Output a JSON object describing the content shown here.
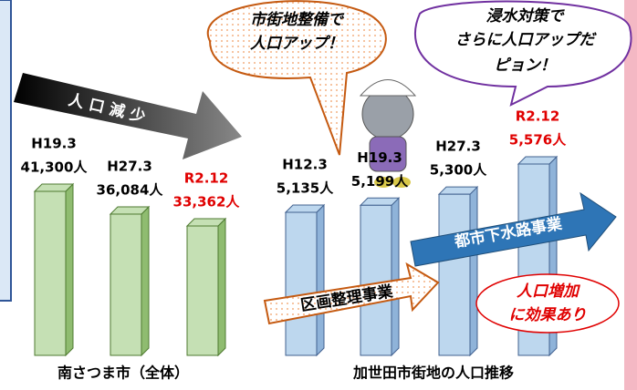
{
  "chart_data": [
    {
      "type": "bar",
      "title": "南さつま市（全体）",
      "categories": [
        "H19.3",
        "H27.3",
        "R2.12"
      ],
      "values": [
        41300,
        36084,
        33362
      ],
      "value_labels": [
        "41,300人",
        "36,084人",
        "33,362人"
      ],
      "color": "#c5e0b4",
      "label_colors": [
        "#000000",
        "#000000",
        "#e00000"
      ]
    },
    {
      "type": "bar",
      "title": "加世田市街地の人口推移",
      "categories": [
        "H12.3",
        "H19.3",
        "H27.3",
        "R2.12"
      ],
      "values": [
        5135,
        5199,
        5300,
        5576
      ],
      "value_labels": [
        "5,135人",
        "5,199人",
        "5,300人",
        "5,576人"
      ],
      "color": "#bdd7ee",
      "label_colors": [
        "#000000",
        "#000000",
        "#000000",
        "#e00000"
      ]
    }
  ],
  "annotations": {
    "decline_arrow": "人口減少",
    "bubble_left": [
      "市街地整備で",
      "人口アップ！"
    ],
    "bubble_right": [
      "浸水対策で",
      "さらに人口アップだ",
      "ピョン！"
    ],
    "arrow_land": "区画整理事業",
    "arrow_sewer": "都市下水路事業",
    "effect": [
      "人口増加",
      "に効果あり"
    ]
  }
}
